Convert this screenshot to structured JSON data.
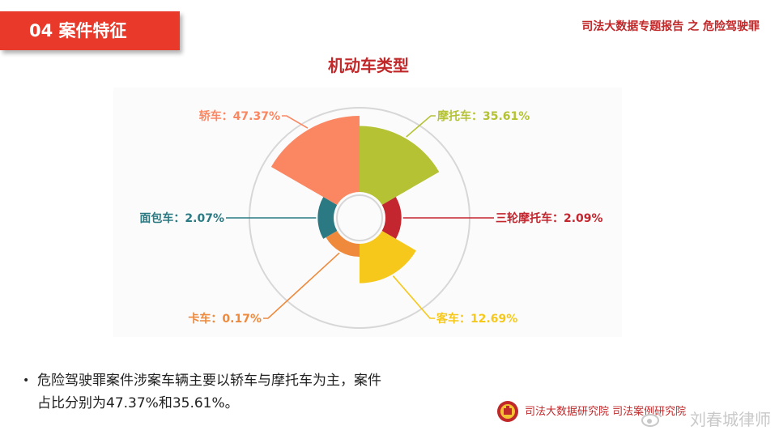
{
  "header": {
    "section_label": "04  案件特征",
    "report_title": "司法大数据专题报告 之 危险驾驶罪"
  },
  "chart_data": {
    "type": "pie",
    "variant": "rose",
    "title": "机动车类型",
    "slices": [
      {
        "label": "摩托车：35.61%",
        "name": "摩托车",
        "value": 35.61,
        "color": "#b5c234"
      },
      {
        "label": "三轮摩托车：2.09%",
        "name": "三轮摩托车",
        "value": 2.09,
        "color": "#c4262f"
      },
      {
        "label": "客车：12.69%",
        "name": "客车",
        "value": 12.69,
        "color": "#f6c81b"
      },
      {
        "label": "卡车：0.17%",
        "name": "卡车",
        "value": 0.17,
        "color": "#ef8a3c"
      },
      {
        "label": "面包车：2.07%",
        "name": "面包车",
        "value": 2.07,
        "color": "#2b7a83"
      },
      {
        "label": "轿车：47.37%",
        "name": "轿车",
        "value": 47.37,
        "color": "#fb8762"
      }
    ]
  },
  "bullet": {
    "line1": "危险驾驶罪案件涉案车辆主要以轿车与摩托车为主，案件",
    "line2": "占比分别为47.37%和35.61%。"
  },
  "footer": {
    "org": "司法大数据研究院  司法案例研究院",
    "watermark": "刘春城律师",
    "logo_icon": "court-emblem-icon",
    "watermark_icon": "weibo-icon"
  }
}
